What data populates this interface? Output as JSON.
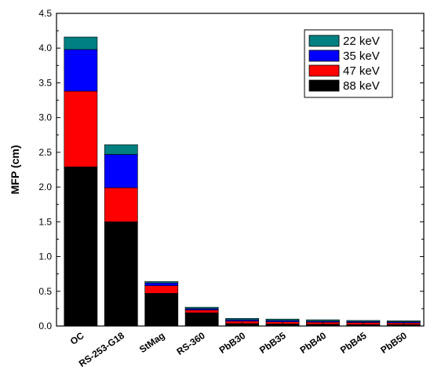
{
  "chart_data": {
    "type": "bar",
    "stacked": true,
    "title": "",
    "xlabel": "",
    "ylabel": "MFP (cm)",
    "ylim": [
      0,
      4.5
    ],
    "yticks": [
      "0.0",
      "0.5",
      "1.0",
      "1.5",
      "2.0",
      "2.5",
      "3.0",
      "3.5",
      "4.0",
      "4.5"
    ],
    "grid": false,
    "legend_position": "top-right",
    "categories": [
      "OC",
      "RS-253-G18",
      "StMag",
      "RS-360",
      "PbB30",
      "PbB35",
      "PbB40",
      "PbB45",
      "PbB50"
    ],
    "series": [
      {
        "name": "88 keV",
        "color": "#000000",
        "values": [
          2.29,
          1.5,
          0.47,
          0.19,
          0.035,
          0.03,
          0.025,
          0.02,
          0.02
        ]
      },
      {
        "name": "47 keV",
        "color": "#ff0000",
        "values": [
          1.09,
          0.49,
          0.11,
          0.04,
          0.035,
          0.03,
          0.03,
          0.03,
          0.025
        ]
      },
      {
        "name": "35 keV",
        "color": "#0000ff",
        "values": [
          0.6,
          0.48,
          0.04,
          0.02,
          0.02,
          0.02,
          0.015,
          0.015,
          0.015
        ]
      },
      {
        "name": "22 keV",
        "color": "#008080",
        "values": [
          0.18,
          0.14,
          0.02,
          0.02,
          0.02,
          0.02,
          0.02,
          0.015,
          0.015
        ]
      }
    ]
  }
}
